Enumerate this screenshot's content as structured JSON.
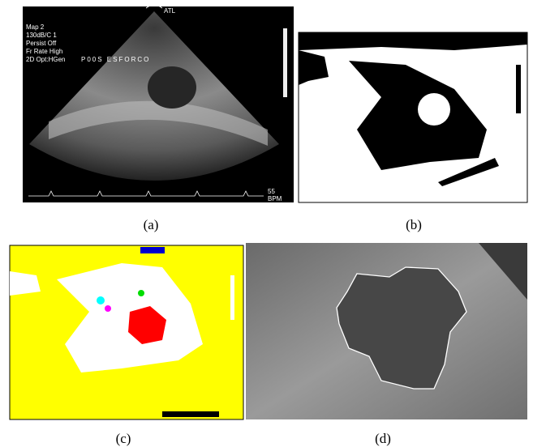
{
  "panel_a": {
    "label": "(a)",
    "info": [
      "Map 2",
      "130dB/C 1",
      "Persist Off",
      "Fr Rate High",
      "2D Opt:HGen"
    ],
    "caption": "P00S ESFORCO",
    "brand": "ATL",
    "heart_rate": 55,
    "heart_rate_unit": "BPM"
  },
  "panel_b": {
    "label": "(b)"
  },
  "panel_c": {
    "label": "(c)"
  },
  "panel_d": {
    "label": "(d)"
  }
}
